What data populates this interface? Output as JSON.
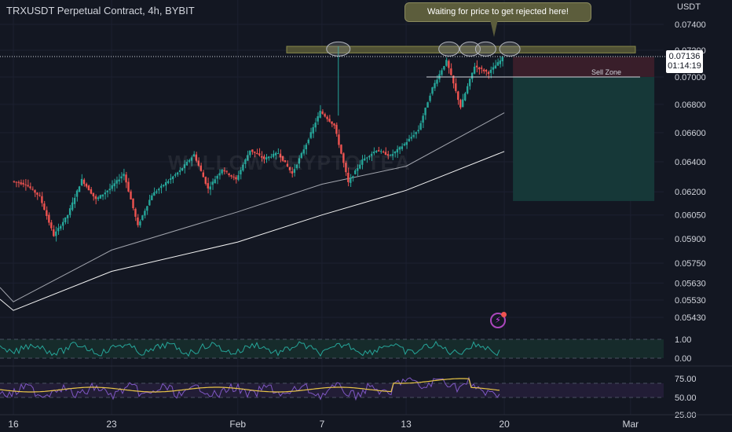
{
  "header": {
    "title": "TRXUSDT Perpetual Contract, 4h, BYBIT",
    "unit": "USDT"
  },
  "callout": {
    "text": "Waiting for price to get rejected here!"
  },
  "current_price": {
    "price": "0.07136",
    "countdown": "01:14:19"
  },
  "watermark": "WALLOW CRYPTO TEA",
  "colors": {
    "background": "#131722",
    "bull": "#26a69a",
    "bear": "#ef5350",
    "resistance": "#8a8a4a",
    "stop_zone": "#3b1f2b",
    "target_zone": "#163a3a",
    "oscillator_line": "#26a69a",
    "rsi_line": "#7e57c2",
    "rsi_ma": "#e8c547"
  },
  "icons": {
    "flash": "flash-icon"
  },
  "chart_data": [
    {
      "type": "candlestick",
      "title": "TRXUSDT Perpetual Contract, 4h, BYBIT",
      "y_unit": "USDT",
      "y_scale": "log",
      "ylim": [
        0.0538,
        0.0753
      ],
      "y_ticks": [
        "0.07400",
        "0.07200",
        "0.07000",
        "0.06800",
        "0.06600",
        "0.06400",
        "0.06200",
        "0.06050",
        "0.05900",
        "0.05750",
        "0.05630",
        "0.05530",
        "0.05430"
      ],
      "x_ticks": [
        "16",
        "23",
        "Feb",
        "7",
        "13",
        "20",
        "Mar"
      ],
      "price_path": [
        {
          "date": "Jan 16",
          "value": 0.0627
        },
        {
          "date": "Jan 17",
          "value": 0.0625
        },
        {
          "date": "Jan 18",
          "value": 0.0617
        },
        {
          "date": "Jan 19",
          "value": 0.0592
        },
        {
          "date": "Jan 20",
          "value": 0.0605
        },
        {
          "date": "Jan 21",
          "value": 0.0628
        },
        {
          "date": "Jan 22",
          "value": 0.0615
        },
        {
          "date": "Jan 23",
          "value": 0.0622
        },
        {
          "date": "Jan 24",
          "value": 0.0632
        },
        {
          "date": "Jan 25",
          "value": 0.0598
        },
        {
          "date": "Jan 26",
          "value": 0.0618
        },
        {
          "date": "Jan 27",
          "value": 0.0626
        },
        {
          "date": "Jan 28",
          "value": 0.0634
        },
        {
          "date": "Jan 29",
          "value": 0.0645
        },
        {
          "date": "Jan 30",
          "value": 0.0622
        },
        {
          "date": "Jan 31",
          "value": 0.0635
        },
        {
          "date": "Feb 1",
          "value": 0.0628
        },
        {
          "date": "Feb 2",
          "value": 0.0648
        },
        {
          "date": "Feb 3",
          "value": 0.0642
        },
        {
          "date": "Feb 4",
          "value": 0.0646
        },
        {
          "date": "Feb 5",
          "value": 0.0632
        },
        {
          "date": "Feb 6",
          "value": 0.0652
        },
        {
          "date": "Feb 7",
          "value": 0.0675
        },
        {
          "date": "Feb 8",
          "value": 0.0665
        },
        {
          "date": "Feb 9",
          "value": 0.0626
        },
        {
          "date": "Feb 10",
          "value": 0.0641
        },
        {
          "date": "Feb 11",
          "value": 0.0648
        },
        {
          "date": "Feb 12",
          "value": 0.0644
        },
        {
          "date": "Feb 13",
          "value": 0.0652
        },
        {
          "date": "Feb 14",
          "value": 0.0662
        },
        {
          "date": "Feb 15",
          "value": 0.0692
        },
        {
          "date": "Feb 16",
          "value": 0.0712
        },
        {
          "date": "Feb 17",
          "value": 0.0678
        },
        {
          "date": "Feb 18",
          "value": 0.0708
        },
        {
          "date": "Feb 19",
          "value": 0.0703
        },
        {
          "date": "Feb 20",
          "value": 0.0714
        }
      ],
      "moving_averages": [
        {
          "name": "",
          "color": "#d1d4dc",
          "values": [
            {
              "date": "Jan 16",
              "value": 0.0552
            },
            {
              "date": "Jan 23",
              "value": 0.0583
            },
            {
              "date": "Feb 1",
              "value": 0.0607
            },
            {
              "date": "Feb 7",
              "value": 0.0625
            },
            {
              "date": "Feb 13",
              "value": 0.0637
            },
            {
              "date": "Feb 20",
              "value": 0.0674
            }
          ]
        },
        {
          "name": "",
          "color": "#ffffff",
          "values": [
            {
              "date": "Jan 16",
              "value": 0.0547
            },
            {
              "date": "Jan 23",
              "value": 0.057
            },
            {
              "date": "Feb 1",
              "value": 0.0588
            },
            {
              "date": "Feb 7",
              "value": 0.0605
            },
            {
              "date": "Feb 13",
              "value": 0.0621
            },
            {
              "date": "Feb 20",
              "value": 0.0647
            }
          ]
        }
      ],
      "annotations": {
        "resistance_zone": {
          "from": 0.0718,
          "to": 0.0723
        },
        "sell_zone_label": "Sell Zone",
        "sell_entry": 0.07,
        "stop_top": 0.0715,
        "target": 0.0614,
        "rejection_circles": 5
      }
    },
    {
      "type": "line",
      "title": "",
      "y_ticks": [
        "1.00",
        "0.00"
      ],
      "ylim": [
        0,
        1
      ],
      "series": [
        {
          "name": "",
          "color": "#26a69a"
        }
      ]
    },
    {
      "type": "line",
      "title": "",
      "y_ticks": [
        "75.00",
        "50.00",
        "25.00"
      ],
      "ylim": [
        25,
        75
      ],
      "series": [
        {
          "name": "",
          "color": "#7e57c2"
        },
        {
          "name": "",
          "color": "#e8c547"
        }
      ]
    }
  ]
}
